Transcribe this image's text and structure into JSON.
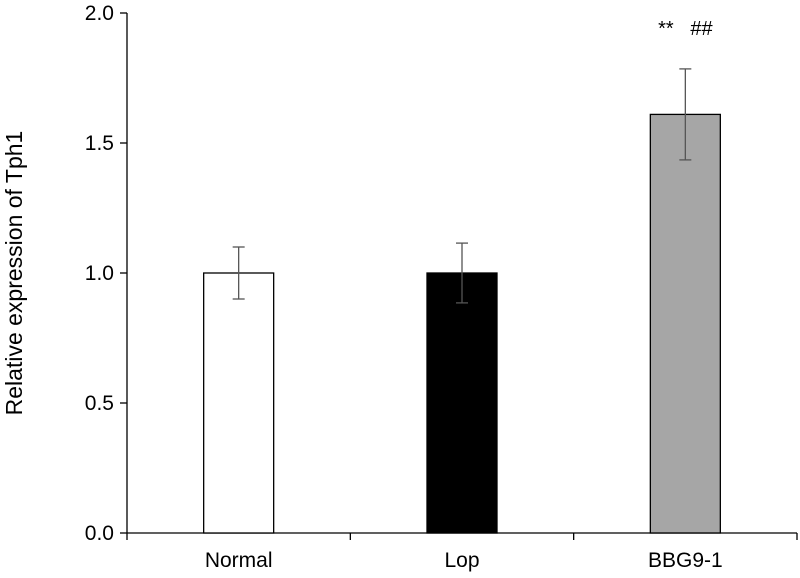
{
  "chart_data": {
    "type": "bar",
    "title": "",
    "xlabel": "",
    "ylabel": "Relative expression of Tph1",
    "categories": [
      "Normal",
      "Lop",
      "BBG9-1"
    ],
    "values": [
      1.0,
      1.0,
      1.61
    ],
    "errors": [
      0.1,
      0.115,
      0.175
    ],
    "bar_colors": [
      "#ffffff",
      "#000000",
      "#a6a6a6"
    ],
    "ylim": [
      0,
      2.0
    ],
    "yticks": [
      0.0,
      0.5,
      1.0,
      1.5,
      2.0
    ],
    "ytick_labels": [
      "0.0",
      "0.5",
      "1.0",
      "1.5",
      "2.0"
    ],
    "grid": false,
    "annotations": [
      {
        "category": "BBG9-1",
        "text": "**   ##"
      }
    ]
  }
}
